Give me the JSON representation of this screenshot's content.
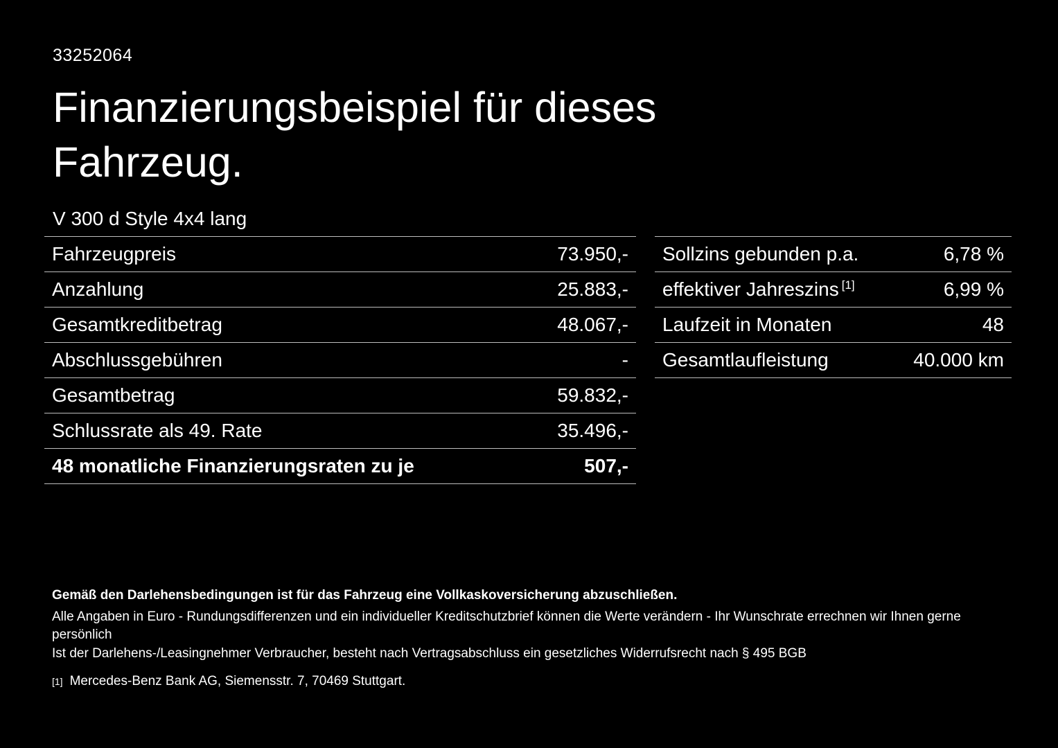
{
  "page": {
    "doc_id": "33252064",
    "title": "Finanzierungsbeispiel für dieses Fahrzeug.",
    "vehicle_model": "V 300 d Style 4x4 lang"
  },
  "finance_table": {
    "rows": [
      {
        "label": "Fahrzeugpreis",
        "value": "73.950,-"
      },
      {
        "label": "Anzahlung",
        "value": "25.883,-"
      },
      {
        "label": "Gesamtkreditbetrag",
        "value": "48.067,-"
      },
      {
        "label": "Abschlussgebühren",
        "value": "-"
      },
      {
        "label": "Gesamtbetrag",
        "value": "59.832,-"
      },
      {
        "label": "Schlussrate als 49. Rate",
        "value": "35.496,-"
      },
      {
        "label": "48 monatliche Finanzierungsraten zu je",
        "value": "507,-"
      }
    ]
  },
  "conditions_table": {
    "rows": [
      {
        "label": "Sollzins gebunden p.a.",
        "value": "6,78 %"
      },
      {
        "label": "effektiver Jahreszins",
        "sup": "[1]",
        "value": "6,99 %"
      },
      {
        "label": "Laufzeit in Monaten",
        "value": "48"
      },
      {
        "label": "Gesamtlaufleistung",
        "value": "40.000 km"
      }
    ]
  },
  "footer": {
    "bold_note": "Gemäß den Darlehensbedingungen ist für das Fahrzeug eine Vollkaskoversicherung abzuschließen.",
    "note2": "Alle Angaben in Euro - Rundungsdifferenzen und ein individueller Kreditschutzbrief können die Werte verändern - Ihr Wunschrate errechnen wir Ihnen gerne persönlich",
    "note3": "Ist der Darlehens-/Leasingnehmer Verbraucher, besteht nach Vertragsabschluss ein gesetzliches Widerrufsrecht nach § 495 BGB",
    "footnote_marker": "[1]",
    "footnote_text": "Mercedes-Benz Bank AG, Siemensstr. 7, 70469 Stuttgart."
  },
  "colors": {
    "background": "#000000",
    "text": "#ffffff",
    "divider": "#c0c0c0"
  }
}
